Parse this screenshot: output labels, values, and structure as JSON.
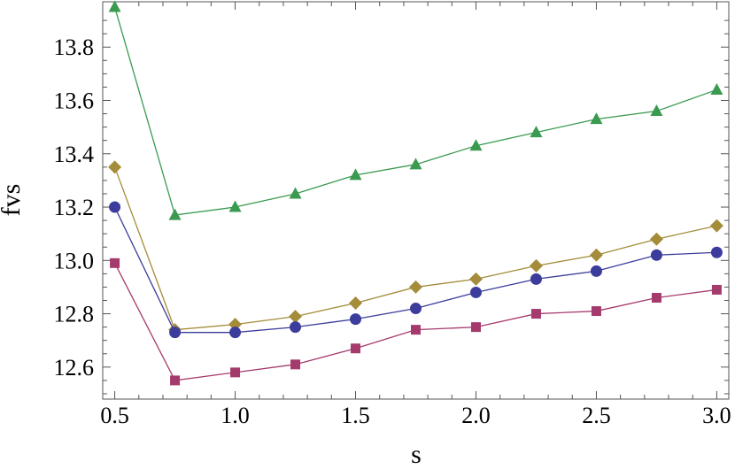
{
  "chart_data": {
    "type": "line",
    "title": "",
    "xlabel": "s",
    "ylabel": "fvs",
    "xlim": [
      0.45,
      3.05
    ],
    "ylim": [
      12.48,
      13.97
    ],
    "x_ticks": [
      "0.5",
      "1.0",
      "1.5",
      "2.0",
      "2.5",
      "3.0"
    ],
    "y_ticks": [
      "12.6",
      "12.8",
      "13.0",
      "13.2",
      "13.4",
      "13.6",
      "13.8"
    ],
    "grid": false,
    "legend": "none",
    "x": [
      0.5,
      0.75,
      1.0,
      1.25,
      1.5,
      1.75,
      2.0,
      2.25,
      2.5,
      2.75,
      3.0
    ],
    "series": [
      {
        "marker": "triangle",
        "color": "#3a9a50",
        "values": [
          13.95,
          13.17,
          13.2,
          13.25,
          13.32,
          13.36,
          13.43,
          13.48,
          13.53,
          13.56,
          13.64
        ]
      },
      {
        "marker": "diamond",
        "color": "#a48c3a",
        "values": [
          13.35,
          12.74,
          12.76,
          12.79,
          12.84,
          12.9,
          12.93,
          12.98,
          13.02,
          13.08,
          13.13
        ]
      },
      {
        "marker": "circle",
        "color": "#3c3c9c",
        "values": [
          13.2,
          12.73,
          12.73,
          12.75,
          12.78,
          12.82,
          12.88,
          12.93,
          12.96,
          13.02,
          13.03
        ]
      },
      {
        "marker": "square",
        "color": "#a53a6c",
        "values": [
          12.99,
          12.55,
          12.58,
          12.61,
          12.67,
          12.74,
          12.75,
          12.8,
          12.81,
          12.86,
          12.89
        ]
      }
    ]
  }
}
